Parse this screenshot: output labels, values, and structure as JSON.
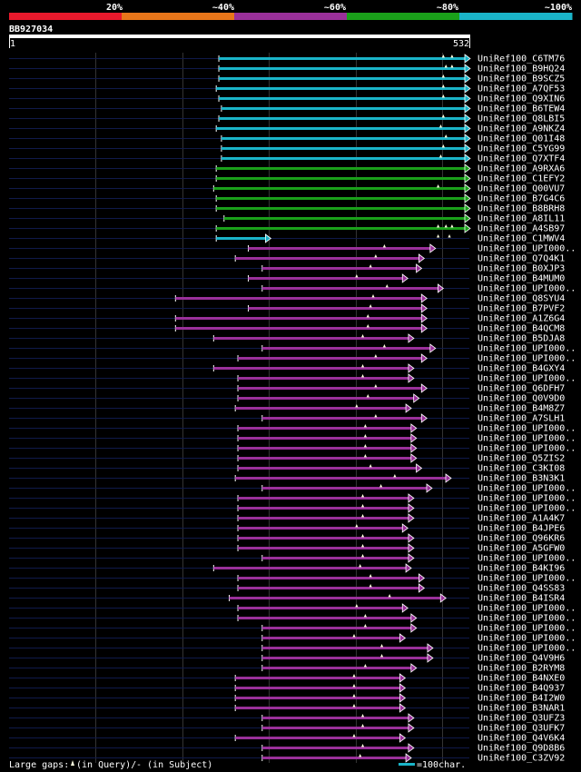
{
  "chart_data": {
    "type": "alignment-overview",
    "query_id": "BB927034",
    "query_length": 532,
    "axis_start_label": "1",
    "axis_end_label": "532",
    "scale_labels": [
      "20%",
      "~40%",
      "~60%",
      "~80%",
      "~100%"
    ],
    "identity_bins": [
      {
        "label": "20%",
        "color": "#e8192c"
      },
      {
        "label": "~40%",
        "color": "#e8761a"
      },
      {
        "label": "~60%",
        "color": "#9a309a"
      },
      {
        "label": "~80%",
        "color": "#1aa01a"
      },
      {
        "label": "~100%",
        "color": "#1ab4c8"
      }
    ],
    "legend": {
      "prefix": "Large gaps:",
      "query_text": "(in Query)/",
      "subject_text": "- (in Subject)",
      "scale_text": "=100char."
    },
    "hits": [
      {
        "name": "UniRef100_C6TM76",
        "start": 243,
        "end": 532,
        "bin": 4,
        "marks": [
          502,
          512
        ]
      },
      {
        "name": "UniRef100_B9HQ24",
        "start": 243,
        "end": 532,
        "bin": 4,
        "marks": [
          505,
          512
        ]
      },
      {
        "name": "UniRef100_B9SCZ5",
        "start": 243,
        "end": 532,
        "bin": 4,
        "marks": [
          502
        ]
      },
      {
        "name": "UniRef100_A7QF53",
        "start": 240,
        "end": 532,
        "bin": 4,
        "marks": [
          502
        ]
      },
      {
        "name": "UniRef100_Q9XIN6",
        "start": 243,
        "end": 532,
        "bin": 4,
        "marks": [
          502
        ]
      },
      {
        "name": "UniRef100_B6TEW4",
        "start": 246,
        "end": 532,
        "bin": 4,
        "marks": []
      },
      {
        "name": "UniRef100_Q8LBI5",
        "start": 243,
        "end": 532,
        "bin": 4,
        "marks": [
          502
        ]
      },
      {
        "name": "UniRef100_A9NKZ4",
        "start": 240,
        "end": 532,
        "bin": 4,
        "marks": [
          499
        ]
      },
      {
        "name": "UniRef100_Q01I48",
        "start": 246,
        "end": 532,
        "bin": 4,
        "marks": [
          505
        ]
      },
      {
        "name": "UniRef100_C5YG99",
        "start": 246,
        "end": 532,
        "bin": 4,
        "marks": [
          502
        ]
      },
      {
        "name": "UniRef100_Q7XTF4",
        "start": 246,
        "end": 532,
        "bin": 4,
        "marks": [
          499
        ]
      },
      {
        "name": "UniRef100_A9RXA6",
        "start": 240,
        "end": 532,
        "bin": 3,
        "marks": []
      },
      {
        "name": "UniRef100_C1EFY2",
        "start": 240,
        "end": 532,
        "bin": 3,
        "marks": []
      },
      {
        "name": "UniRef100_Q00VU7",
        "start": 237,
        "end": 532,
        "bin": 3,
        "marks": [
          496
        ]
      },
      {
        "name": "UniRef100_B7G4C6",
        "start": 240,
        "end": 532,
        "bin": 3,
        "marks": []
      },
      {
        "name": "UniRef100_B8BRH8",
        "start": 240,
        "end": 532,
        "bin": 3,
        "marks": []
      },
      {
        "name": "UniRef100_A8IL11",
        "start": 249,
        "end": 532,
        "bin": 3,
        "marks": []
      },
      {
        "name": "UniRef100_A4SB97",
        "start": 240,
        "end": 532,
        "bin": 3,
        "marks": [
          496,
          505,
          512
        ]
      },
      {
        "name": "UniRef100_C1MWV4",
        "start": 240,
        "end": 302,
        "bin": 4,
        "marks": [
          496,
          509
        ]
      },
      {
        "name": "UniRef100_UPI000..",
        "start": 277,
        "end": 492,
        "bin": 2,
        "marks": [
          434
        ]
      },
      {
        "name": "UniRef100_Q7Q4K1",
        "start": 262,
        "end": 479,
        "bin": 2,
        "marks": [
          424
        ]
      },
      {
        "name": "UniRef100_B0XJP3",
        "start": 293,
        "end": 476,
        "bin": 2,
        "marks": [
          418
        ]
      },
      {
        "name": "UniRef100_B4MUM0",
        "start": 277,
        "end": 460,
        "bin": 2,
        "marks": [
          402
        ]
      },
      {
        "name": "UniRef100_UPI000..",
        "start": 293,
        "end": 501,
        "bin": 2,
        "marks": [
          437
        ]
      },
      {
        "name": "UniRef100_Q8SYU4",
        "start": 193,
        "end": 482,
        "bin": 2,
        "marks": [
          421
        ]
      },
      {
        "name": "UniRef100_B7PVF2",
        "start": 277,
        "end": 482,
        "bin": 2,
        "marks": [
          418
        ]
      },
      {
        "name": "UniRef100_A1Z6G4",
        "start": 193,
        "end": 482,
        "bin": 2,
        "marks": [
          415
        ]
      },
      {
        "name": "UniRef100_B4QCM8",
        "start": 193,
        "end": 482,
        "bin": 2,
        "marks": [
          415
        ]
      },
      {
        "name": "UniRef100_B5DJA8",
        "start": 237,
        "end": 467,
        "bin": 2,
        "marks": [
          409
        ]
      },
      {
        "name": "UniRef100_UPI000..",
        "start": 293,
        "end": 492,
        "bin": 2,
        "marks": [
          434
        ]
      },
      {
        "name": "UniRef100_UPI000..",
        "start": 265,
        "end": 482,
        "bin": 2,
        "marks": [
          424
        ]
      },
      {
        "name": "UniRef100_B4GXY4",
        "start": 237,
        "end": 467,
        "bin": 2,
        "marks": [
          409
        ]
      },
      {
        "name": "UniRef100_UPI000..",
        "start": 265,
        "end": 467,
        "bin": 2,
        "marks": [
          409
        ]
      },
      {
        "name": "UniRef100_Q6DFH7",
        "start": 265,
        "end": 482,
        "bin": 2,
        "marks": [
          424
        ]
      },
      {
        "name": "UniRef100_Q0V9D0",
        "start": 265,
        "end": 473,
        "bin": 2,
        "marks": [
          415
        ]
      },
      {
        "name": "UniRef100_B4M8Z7",
        "start": 262,
        "end": 464,
        "bin": 2,
        "marks": [
          402
        ]
      },
      {
        "name": "UniRef100_A7SLH1",
        "start": 293,
        "end": 482,
        "bin": 2,
        "marks": [
          424
        ]
      },
      {
        "name": "UniRef100_UPI000..",
        "start": 265,
        "end": 470,
        "bin": 2,
        "marks": [
          412
        ]
      },
      {
        "name": "UniRef100_UPI000..",
        "start": 265,
        "end": 470,
        "bin": 2,
        "marks": [
          412
        ]
      },
      {
        "name": "UniRef100_UPI000..",
        "start": 265,
        "end": 470,
        "bin": 2,
        "marks": [
          412
        ]
      },
      {
        "name": "UniRef100_Q5ZIS2",
        "start": 265,
        "end": 470,
        "bin": 2,
        "marks": [
          412
        ]
      },
      {
        "name": "UniRef100_C3KI08",
        "start": 265,
        "end": 476,
        "bin": 2,
        "marks": [
          418
        ]
      },
      {
        "name": "UniRef100_B3N3K1",
        "start": 262,
        "end": 510,
        "bin": 2,
        "marks": [
          446
        ]
      },
      {
        "name": "UniRef100_UPI000..",
        "start": 293,
        "end": 488,
        "bin": 2,
        "marks": [
          430
        ]
      },
      {
        "name": "UniRef100_UPI000..",
        "start": 265,
        "end": 467,
        "bin": 2,
        "marks": [
          409
        ]
      },
      {
        "name": "UniRef100_UPI000..",
        "start": 265,
        "end": 467,
        "bin": 2,
        "marks": [
          409
        ]
      },
      {
        "name": "UniRef100_A1A4K7",
        "start": 265,
        "end": 467,
        "bin": 2,
        "marks": [
          409
        ]
      },
      {
        "name": "UniRef100_B4JPE6",
        "start": 265,
        "end": 460,
        "bin": 2,
        "marks": [
          402
        ]
      },
      {
        "name": "UniRef100_Q96KR6",
        "start": 265,
        "end": 467,
        "bin": 2,
        "marks": [
          409
        ]
      },
      {
        "name": "UniRef100_A5GFW0",
        "start": 265,
        "end": 467,
        "bin": 2,
        "marks": [
          409
        ]
      },
      {
        "name": "UniRef100_UPI000..",
        "start": 293,
        "end": 467,
        "bin": 2,
        "marks": [
          409
        ]
      },
      {
        "name": "UniRef100_B4KI96",
        "start": 237,
        "end": 464,
        "bin": 2,
        "marks": [
          406
        ]
      },
      {
        "name": "UniRef100_UPI000..",
        "start": 265,
        "end": 479,
        "bin": 2,
        "marks": [
          418
        ]
      },
      {
        "name": "UniRef100_Q4SS83",
        "start": 265,
        "end": 479,
        "bin": 2,
        "marks": [
          418
        ]
      },
      {
        "name": "UniRef100_B4ISR4",
        "start": 255,
        "end": 504,
        "bin": 2,
        "marks": [
          440
        ]
      },
      {
        "name": "UniRef100_UPI000..",
        "start": 265,
        "end": 460,
        "bin": 2,
        "marks": [
          402
        ]
      },
      {
        "name": "UniRef100_UPI000..",
        "start": 265,
        "end": 470,
        "bin": 2,
        "marks": [
          412
        ]
      },
      {
        "name": "UniRef100_UPI000..",
        "start": 293,
        "end": 470,
        "bin": 2,
        "marks": [
          412
        ]
      },
      {
        "name": "UniRef100_UPI000..",
        "start": 293,
        "end": 457,
        "bin": 2,
        "marks": [
          399
        ]
      },
      {
        "name": "UniRef100_UPI000..",
        "start": 293,
        "end": 489,
        "bin": 2,
        "marks": [
          431
        ]
      },
      {
        "name": "UniRef100_Q4V9H6",
        "start": 293,
        "end": 489,
        "bin": 2,
        "marks": [
          431
        ]
      },
      {
        "name": "UniRef100_B2RYM8",
        "start": 293,
        "end": 470,
        "bin": 2,
        "marks": [
          412
        ]
      },
      {
        "name": "UniRef100_B4NXE0",
        "start": 262,
        "end": 457,
        "bin": 2,
        "marks": [
          399
        ]
      },
      {
        "name": "UniRef100_B4Q937",
        "start": 262,
        "end": 457,
        "bin": 2,
        "marks": [
          399
        ]
      },
      {
        "name": "UniRef100_B4I2W0",
        "start": 262,
        "end": 457,
        "bin": 2,
        "marks": [
          399
        ]
      },
      {
        "name": "UniRef100_B3NAR1",
        "start": 262,
        "end": 457,
        "bin": 2,
        "marks": [
          399
        ]
      },
      {
        "name": "UniRef100_Q3UFZ3",
        "start": 293,
        "end": 467,
        "bin": 2,
        "marks": [
          409
        ]
      },
      {
        "name": "UniRef100_Q3UFK7",
        "start": 293,
        "end": 467,
        "bin": 2,
        "marks": [
          409
        ]
      },
      {
        "name": "UniRef100_Q4V6K4",
        "start": 262,
        "end": 457,
        "bin": 2,
        "marks": [
          399
        ]
      },
      {
        "name": "UniRef100_Q9D8B6",
        "start": 293,
        "end": 467,
        "bin": 2,
        "marks": [
          409
        ]
      },
      {
        "name": "UniRef100_C3ZV92",
        "start": 293,
        "end": 464,
        "bin": 2,
        "marks": [
          406
        ]
      }
    ]
  }
}
